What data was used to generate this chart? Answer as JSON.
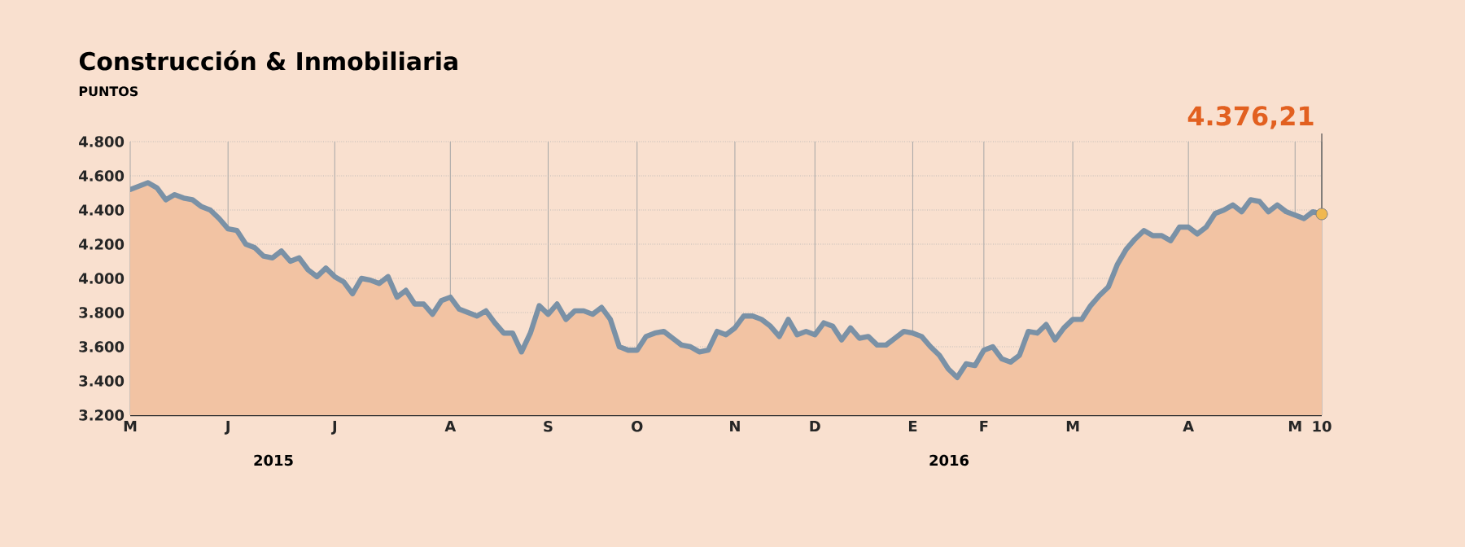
{
  "chart_data": {
    "type": "area",
    "title": "Construcción & Inmobiliaria",
    "subtitle": "PUNTOS",
    "categories": [
      "M",
      null,
      null,
      null,
      null,
      null,
      null,
      null,
      null,
      null,
      null,
      "J",
      null,
      null,
      null,
      null,
      null,
      null,
      null,
      null,
      null,
      null,
      null,
      "J",
      null,
      null,
      null,
      null,
      null,
      null,
      null,
      null,
      null,
      null,
      null,
      null,
      "A",
      null,
      null,
      null,
      null,
      null,
      null,
      null,
      null,
      null,
      null,
      "S",
      null,
      null,
      null,
      null,
      null,
      null,
      null,
      null,
      null,
      "O",
      null,
      null,
      null,
      null,
      null,
      null,
      null,
      null,
      null,
      null,
      "N",
      null,
      null,
      null,
      null,
      null,
      null,
      null,
      null,
      "D",
      null,
      null,
      null,
      null,
      null,
      null,
      null,
      null,
      null,
      null,
      "E",
      null,
      null,
      null,
      null,
      null,
      null,
      null,
      "F",
      null,
      null,
      null,
      null,
      null,
      null,
      null,
      null,
      null,
      "M",
      null,
      null,
      null,
      null,
      null,
      null,
      null,
      null,
      null,
      null,
      null,
      null,
      "A",
      null,
      null,
      null,
      null,
      null,
      null,
      null,
      null,
      null,
      null,
      null,
      "M",
      null,
      null,
      "10"
    ],
    "series": [
      {
        "color": "#f2c3a3",
        "values": [
          4520,
          4540,
          4560,
          4530,
          4460,
          4490,
          4470,
          4460,
          4420,
          4400,
          4350,
          4290,
          4280,
          4200,
          4180,
          4130,
          4120,
          4160,
          4100,
          4120,
          4050,
          4010,
          4060,
          4010,
          3980,
          3910,
          4000,
          3990,
          3970,
          4010,
          3890,
          3930,
          3850,
          3850,
          3790,
          3870,
          3890,
          3820,
          3800,
          3780,
          3810,
          3740,
          3680,
          3680,
          3570,
          3680,
          3840,
          3790,
          3850,
          3760,
          3810,
          3810,
          3790,
          3830,
          3760,
          3600,
          3580,
          3580,
          3660,
          3680,
          3690,
          3650,
          3610,
          3600,
          3570,
          3580,
          3690,
          3670,
          3710,
          3780,
          3780,
          3760,
          3720,
          3660,
          3760,
          3670,
          3690,
          3670,
          3740,
          3720,
          3640,
          3710,
          3650,
          3660,
          3610,
          3610,
          3650,
          3690,
          3680,
          3660,
          3600,
          3550,
          3470,
          3420,
          3500,
          3490,
          3580,
          3600,
          3530,
          3510,
          3550,
          3690,
          3680,
          3730,
          3640,
          3710,
          3760,
          3760,
          3840,
          3900,
          3950,
          4080,
          4170,
          4230,
          4280,
          4250,
          4250,
          4220,
          4300,
          4300,
          4260,
          4300,
          4380,
          4400,
          4430,
          4390,
          4460,
          4450,
          4390,
          4430,
          4390,
          4370,
          4350,
          4390,
          4376.21
        ]
      },
      {
        "type": "line",
        "color": "#7a91a6",
        "values": [
          4520,
          4540,
          4560,
          4530,
          4460,
          4490,
          4470,
          4460,
          4420,
          4400,
          4350,
          4290,
          4280,
          4200,
          4180,
          4130,
          4120,
          4160,
          4100,
          4120,
          4050,
          4010,
          4060,
          4010,
          3980,
          3910,
          4000,
          3990,
          3970,
          4010,
          3890,
          3930,
          3850,
          3850,
          3790,
          3870,
          3890,
          3820,
          3800,
          3780,
          3810,
          3740,
          3680,
          3680,
          3570,
          3680,
          3840,
          3790,
          3850,
          3760,
          3810,
          3810,
          3790,
          3830,
          3760,
          3600,
          3580,
          3580,
          3660,
          3680,
          3690,
          3650,
          3610,
          3600,
          3570,
          3580,
          3690,
          3670,
          3710,
          3780,
          3780,
          3760,
          3720,
          3660,
          3760,
          3670,
          3690,
          3670,
          3740,
          3720,
          3640,
          3710,
          3650,
          3660,
          3610,
          3610,
          3650,
          3690,
          3680,
          3660,
          3600,
          3550,
          3470,
          3420,
          3500,
          3490,
          3580,
          3600,
          3530,
          3510,
          3550,
          3690,
          3680,
          3730,
          3640,
          3710,
          3760,
          3760,
          3840,
          3900,
          3950,
          4080,
          4170,
          4230,
          4280,
          4250,
          4250,
          4220,
          4300,
          4300,
          4260,
          4300,
          4380,
          4400,
          4430,
          4390,
          4460,
          4450,
          4390,
          4430,
          4390,
          4370,
          4350,
          4390,
          4376.21
        ]
      }
    ],
    "ylim": [
      3200,
      4800
    ],
    "yticks": [
      {
        "value": 3200,
        "label": "3.200"
      },
      {
        "value": 3400,
        "label": "3.400"
      },
      {
        "value": 3600,
        "label": "3.600"
      },
      {
        "value": 3800,
        "label": "3.800"
      },
      {
        "value": 4000,
        "label": "4.000"
      },
      {
        "value": 4200,
        "label": "4.200"
      },
      {
        "value": 4400,
        "label": "4.400"
      },
      {
        "value": 4600,
        "label": "4.600"
      },
      {
        "value": 4800,
        "label": "4.800"
      }
    ],
    "annotations": [
      {
        "text": "4.376,21",
        "x": "10",
        "y": 4376.21
      },
      "2015",
      "2016"
    ],
    "grid": true,
    "marker": "none",
    "line_style": "solid"
  }
}
